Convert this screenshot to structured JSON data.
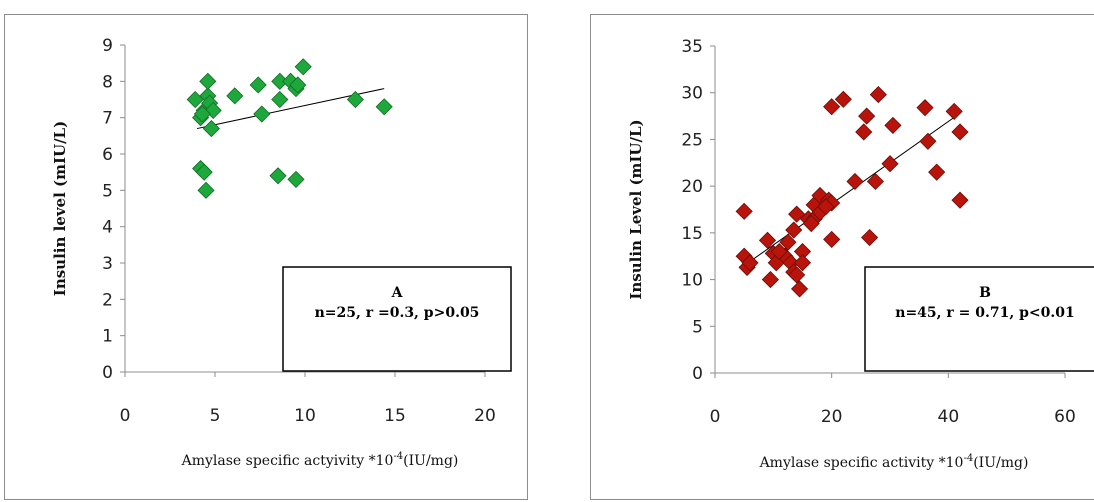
{
  "chart_data": [
    {
      "type": "scatter",
      "panel_label": "A",
      "stats": "n=25, r =0.3, p>0.05",
      "ylabel": "Insulin level (mIU/L)",
      "xlabel_pre": "Amylase specific actyivity *10",
      "xlabel_sup": "-4",
      "xlabel_post": "(IU/mg)",
      "xlim": [
        0,
        20
      ],
      "ylim": [
        0,
        9
      ],
      "xticks": [
        0,
        5,
        10,
        15,
        20
      ],
      "yticks": [
        0,
        1,
        2,
        3,
        4,
        5,
        6,
        7,
        8,
        9
      ],
      "marker_color": "#1ea83c",
      "marker_edge": "#0f6e24",
      "points": [
        [
          3.9,
          7.5
        ],
        [
          4.4,
          7.2
        ],
        [
          4.2,
          7.0
        ],
        [
          4.6,
          7.6
        ],
        [
          4.6,
          8.0
        ],
        [
          4.7,
          7.4
        ],
        [
          4.9,
          7.2
        ],
        [
          4.8,
          6.7
        ],
        [
          4.2,
          5.6
        ],
        [
          4.4,
          5.5
        ],
        [
          4.5,
          5.0
        ],
        [
          6.1,
          7.6
        ],
        [
          7.4,
          7.9
        ],
        [
          7.6,
          7.1
        ],
        [
          8.5,
          5.4
        ],
        [
          8.6,
          8.0
        ],
        [
          8.6,
          7.5
        ],
        [
          9.2,
          8.0
        ],
        [
          9.5,
          7.8
        ],
        [
          9.5,
          5.3
        ],
        [
          9.9,
          8.4
        ],
        [
          12.8,
          7.5
        ],
        [
          14.4,
          7.3
        ],
        [
          4.3,
          7.1
        ],
        [
          9.6,
          7.9
        ]
      ],
      "trendline": [
        [
          4.0,
          6.7
        ],
        [
          14.4,
          7.8
        ]
      ]
    },
    {
      "type": "scatter",
      "panel_label": "B",
      "stats": "n=45, r = 0.71, p<0.01",
      "ylabel": "Insulin Level (mIU/L)",
      "xlabel_pre": "Amylase specific activity *10",
      "xlabel_sup": "-4",
      "xlabel_post": "(IU/mg)",
      "xlim": [
        0,
        60
      ],
      "ylim": [
        0,
        35
      ],
      "xticks": [
        0,
        20,
        40,
        60
      ],
      "yticks": [
        0,
        5,
        10,
        15,
        20,
        25,
        30,
        35
      ],
      "marker_color": "#b8140c",
      "marker_edge": "#6e0a05",
      "points": [
        [
          5,
          17.3
        ],
        [
          5,
          12.5
        ],
        [
          5.5,
          11.3
        ],
        [
          9,
          14.2
        ],
        [
          9.5,
          10.0
        ],
        [
          10,
          12.8
        ],
        [
          10.5,
          11.8
        ],
        [
          12,
          12.5
        ],
        [
          12.5,
          14.0
        ],
        [
          13,
          11.8
        ],
        [
          13.5,
          10.8
        ],
        [
          13.5,
          15.3
        ],
        [
          14,
          17.0
        ],
        [
          14,
          10.5
        ],
        [
          14.5,
          9.0
        ],
        [
          15,
          13.0
        ],
        [
          15,
          11.8
        ],
        [
          16,
          16.5
        ],
        [
          17,
          18.0
        ],
        [
          17,
          16.5
        ],
        [
          18,
          19.0
        ],
        [
          18,
          17.2
        ],
        [
          19.5,
          18.5
        ],
        [
          20,
          18.2
        ],
        [
          20,
          14.3
        ],
        [
          20,
          28.5
        ],
        [
          22,
          29.3
        ],
        [
          24,
          20.5
        ],
        [
          25.5,
          25.8
        ],
        [
          26,
          27.5
        ],
        [
          26.5,
          14.5
        ],
        [
          27.5,
          20.5
        ],
        [
          28,
          29.8
        ],
        [
          30,
          22.4
        ],
        [
          30.5,
          26.5
        ],
        [
          36,
          28.4
        ],
        [
          36.5,
          24.8
        ],
        [
          38,
          21.5
        ],
        [
          41,
          28.0
        ],
        [
          42,
          25.8
        ],
        [
          42,
          18.5
        ],
        [
          16.5,
          16.0
        ],
        [
          11,
          13.0
        ],
        [
          6,
          11.8
        ],
        [
          19,
          17.8
        ]
      ],
      "trendline": [
        [
          5,
          11.5
        ],
        [
          42,
          27.8
        ]
      ]
    }
  ]
}
